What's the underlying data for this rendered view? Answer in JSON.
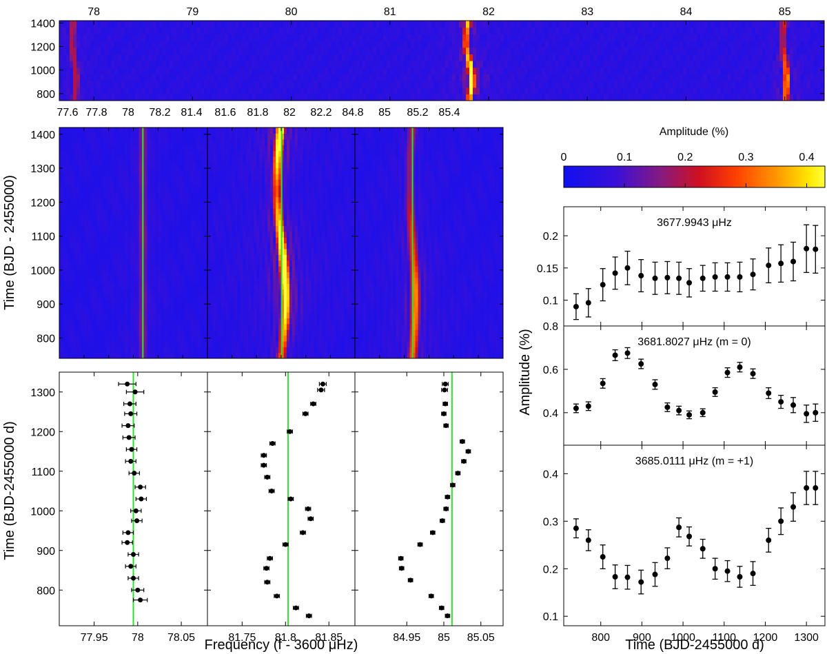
{
  "colors": {
    "cmap": [
      "#1010f0",
      "#3a10d8",
      "#8a1a7a",
      "#d01020",
      "#ff4000",
      "#ff9a00",
      "#ffe800",
      "#ffff40"
    ],
    "fit_line": "#30e030",
    "marker": "#000000",
    "axis": "#000000"
  },
  "top_panel": {
    "type": "heatmap",
    "x_ticks": [
      78,
      79,
      80,
      81,
      82,
      83,
      84,
      85
    ],
    "y_ticks": [
      800,
      1000,
      1200,
      1400
    ],
    "xlim": [
      77.65,
      85.4
    ],
    "ylim": [
      740,
      1420
    ],
    "ridges": [
      {
        "freq": 77.8,
        "amp": 0.16
      },
      {
        "freq": 81.8,
        "amp": 0.42
      },
      {
        "freq": 85.0,
        "amp": 0.3
      }
    ]
  },
  "middle_panels": {
    "ylabel": "Time (BJD - 2455000)",
    "y_ticks": [
      800,
      900,
      1000,
      1100,
      1200,
      1300,
      1400
    ],
    "ylim": [
      740,
      1420
    ],
    "top_ticks": [
      "77.6",
      "77.8",
      "78",
      "78.2",
      "81.4",
      "81.6",
      "81.8",
      "82",
      "82.2",
      "84.8",
      "85",
      "85.2",
      "85.4"
    ],
    "panels": [
      {
        "xlim": [
          77.6,
          78.3
        ],
        "center": 77.995,
        "amp": 0.12,
        "line": 77.995
      },
      {
        "xlim": [
          81.3,
          82.3
        ],
        "center": 81.8,
        "amp": 0.42,
        "line": 81.803
      },
      {
        "xlim": [
          84.7,
          85.5
        ],
        "center": 85.011,
        "amp": 0.3,
        "line": 85.011
      }
    ]
  },
  "colorbar": {
    "label": "Amplitude (%)",
    "ticks": [
      "0",
      "0.1",
      "0.2",
      "0.3",
      "0.4"
    ],
    "range": [
      0,
      0.43
    ]
  },
  "bottom_panels": {
    "xlabel": "Frequency (f - 3600 μHz)",
    "ylabel": "Time (BJD-2455000 d)",
    "y_ticks": [
      800,
      900,
      1000,
      1100,
      1200,
      1300
    ],
    "ylim": [
      710,
      1350
    ],
    "panels": [
      {
        "xlim": [
          77.91,
          78.08
        ],
        "ticks": [
          "77.95",
          "78",
          "78.05"
        ],
        "tick_values": [
          77.95,
          78.0,
          78.05
        ],
        "line": 77.995,
        "points": [
          [
            77.988,
            1320,
            0.01
          ],
          [
            77.997,
            1300,
            0.01
          ],
          [
            77.991,
            1270,
            0.007
          ],
          [
            77.992,
            1245,
            0.007
          ],
          [
            77.989,
            1215,
            0.007
          ],
          [
            77.99,
            1185,
            0.007
          ],
          [
            77.993,
            1155,
            0.006
          ],
          [
            77.992,
            1125,
            0.006
          ],
          [
            77.996,
            1095,
            0.006
          ],
          [
            78.003,
            1060,
            0.006
          ],
          [
            78.004,
            1030,
            0.006
          ],
          [
            77.998,
            1000,
            0.006
          ],
          [
            77.999,
            975,
            0.006
          ],
          [
            77.989,
            945,
            0.006
          ],
          [
            77.988,
            920,
            0.006
          ],
          [
            77.995,
            890,
            0.006
          ],
          [
            77.992,
            860,
            0.006
          ],
          [
            77.995,
            830,
            0.006
          ],
          [
            78.0,
            800,
            0.007
          ],
          [
            78.003,
            775,
            0.008
          ]
        ]
      },
      {
        "xlim": [
          81.71,
          81.88
        ],
        "ticks": [
          "81.75",
          "81.8",
          "81.85"
        ],
        "tick_values": [
          81.75,
          81.8,
          81.85
        ],
        "line": 81.803,
        "points": [
          [
            81.843,
            1320,
            0.004
          ],
          [
            81.841,
            1305,
            0.004
          ],
          [
            81.832,
            1270,
            0.003
          ],
          [
            81.823,
            1245,
            0.003
          ],
          [
            81.805,
            1200,
            0.003
          ],
          [
            81.785,
            1170,
            0.003
          ],
          [
            81.775,
            1140,
            0.003
          ],
          [
            81.775,
            1115,
            0.003
          ],
          [
            81.779,
            1085,
            0.003
          ],
          [
            81.784,
            1050,
            0.003
          ],
          [
            81.806,
            1030,
            0.003
          ],
          [
            81.826,
            1005,
            0.003
          ],
          [
            81.829,
            980,
            0.003
          ],
          [
            81.82,
            945,
            0.003
          ],
          [
            81.8,
            915,
            0.003
          ],
          [
            81.782,
            880,
            0.003
          ],
          [
            81.778,
            855,
            0.003
          ],
          [
            81.779,
            820,
            0.003
          ],
          [
            81.79,
            785,
            0.003
          ],
          [
            81.812,
            755,
            0.003
          ],
          [
            81.827,
            735,
            0.003
          ]
        ]
      },
      {
        "xlim": [
          84.88,
          85.08
        ],
        "ticks": [
          "84.95",
          "85",
          "85.05"
        ],
        "tick_values": [
          84.95,
          85.0,
          85.05
        ],
        "line": 85.011,
        "points": [
          [
            85.002,
            1320,
            0.004
          ],
          [
            85.001,
            1305,
            0.004
          ],
          [
            85.002,
            1270,
            0.003
          ],
          [
            85.0,
            1245,
            0.003
          ],
          [
            85.003,
            1215,
            0.003
          ],
          [
            85.025,
            1175,
            0.003
          ],
          [
            85.033,
            1150,
            0.003
          ],
          [
            85.027,
            1125,
            0.003
          ],
          [
            85.019,
            1095,
            0.003
          ],
          [
            85.012,
            1065,
            0.003
          ],
          [
            85.005,
            1035,
            0.003
          ],
          [
            85.003,
            1005,
            0.003
          ],
          [
            84.998,
            975,
            0.003
          ],
          [
            84.985,
            945,
            0.003
          ],
          [
            84.968,
            915,
            0.003
          ],
          [
            84.942,
            880,
            0.003
          ],
          [
            84.943,
            855,
            0.003
          ],
          [
            84.955,
            825,
            0.003
          ],
          [
            84.983,
            785,
            0.003
          ],
          [
            84.997,
            755,
            0.003
          ],
          [
            85.005,
            735,
            0.003
          ]
        ]
      }
    ]
  },
  "right_panels": {
    "ylabel": "Amplitude (%)",
    "xlabel": "Time (BJD-2455000 d)",
    "xlim": [
      710,
      1345
    ],
    "x_ticks": [
      "800",
      "900",
      "1000",
      "1100",
      "1200",
      "1300"
    ],
    "x_tick_values": [
      800,
      900,
      1000,
      1100,
      1200,
      1300
    ],
    "panels": [
      {
        "label": "3677.9943 μHz",
        "ylim": [
          0.06,
          0.245
        ],
        "y_ticks": [
          "0.1",
          "0.15",
          "0.2"
        ],
        "y_tick_values": [
          0.1,
          0.15,
          0.2
        ],
        "x": [
          740,
          770,
          805,
          835,
          865,
          898,
          932,
          962,
          990,
          1015,
          1048,
          1078,
          1108,
          1138,
          1170,
          1208,
          1238,
          1268,
          1300,
          1322
        ],
        "y": [
          0.09,
          0.096,
          0.124,
          0.142,
          0.15,
          0.138,
          0.134,
          0.135,
          0.134,
          0.127,
          0.134,
          0.136,
          0.136,
          0.136,
          0.14,
          0.154,
          0.157,
          0.16,
          0.18,
          0.179
        ],
        "err": [
          0.02,
          0.022,
          0.025,
          0.025,
          0.026,
          0.025,
          0.025,
          0.025,
          0.025,
          0.022,
          0.02,
          0.022,
          0.022,
          0.023,
          0.024,
          0.027,
          0.029,
          0.03,
          0.037,
          0.037
        ]
      },
      {
        "label": "3681.8027 μHz  (m = 0)",
        "ylim": [
          0.25,
          0.8
        ],
        "y_ticks": [
          "0.4",
          "0.6",
          "0.8"
        ],
        "y_tick_values": [
          0.4,
          0.6,
          0.8
        ],
        "x": [
          740,
          770,
          805,
          835,
          865,
          898,
          932,
          962,
          990,
          1015,
          1048,
          1078,
          1108,
          1138,
          1170,
          1208,
          1238,
          1268,
          1300,
          1322
        ],
        "y": [
          0.42,
          0.43,
          0.535,
          0.665,
          0.675,
          0.625,
          0.53,
          0.425,
          0.41,
          0.39,
          0.4,
          0.495,
          0.585,
          0.61,
          0.58,
          0.49,
          0.45,
          0.435,
          0.395,
          0.4
        ],
        "err": [
          0.02,
          0.02,
          0.022,
          0.025,
          0.025,
          0.022,
          0.022,
          0.02,
          0.02,
          0.018,
          0.018,
          0.02,
          0.022,
          0.022,
          0.022,
          0.025,
          0.03,
          0.035,
          0.04,
          0.04
        ]
      },
      {
        "label": "3685.0111 μHz  (m = +1)",
        "ylim": [
          0.08,
          0.46
        ],
        "y_ticks": [
          "0.1",
          "0.2",
          "0.3",
          "0.4"
        ],
        "y_tick_values": [
          0.1,
          0.2,
          0.3,
          0.4
        ],
        "x": [
          740,
          770,
          805,
          835,
          865,
          898,
          932,
          962,
          990,
          1015,
          1048,
          1078,
          1108,
          1138,
          1170,
          1208,
          1238,
          1268,
          1300,
          1322
        ],
        "y": [
          0.285,
          0.26,
          0.225,
          0.183,
          0.182,
          0.172,
          0.188,
          0.222,
          0.287,
          0.268,
          0.242,
          0.2,
          0.195,
          0.183,
          0.19,
          0.26,
          0.3,
          0.33,
          0.37,
          0.37
        ],
        "err": [
          0.02,
          0.022,
          0.025,
          0.025,
          0.025,
          0.025,
          0.025,
          0.022,
          0.02,
          0.02,
          0.02,
          0.022,
          0.022,
          0.022,
          0.025,
          0.025,
          0.028,
          0.03,
          0.035,
          0.035
        ]
      }
    ]
  }
}
